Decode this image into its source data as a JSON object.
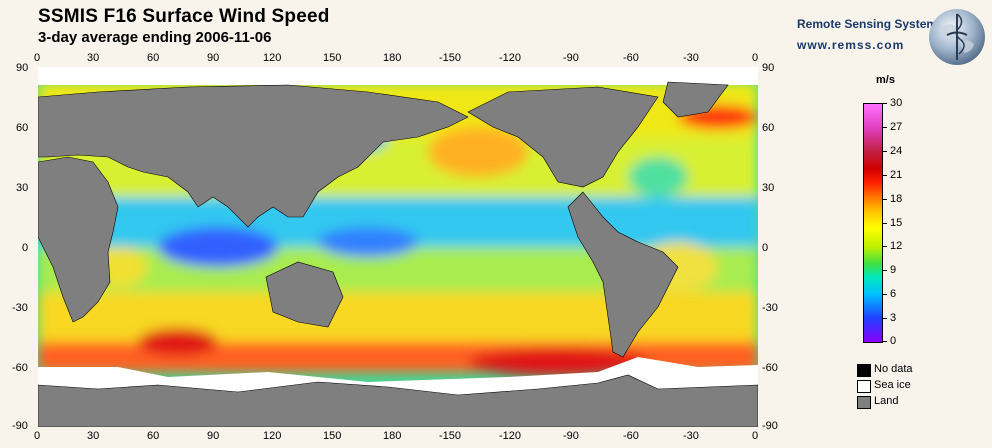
{
  "header": {
    "title": "SSMIS F16 Surface Wind Speed",
    "subtitle": "3-day average ending 2006-11-06"
  },
  "branding": {
    "name": "Remote Sensing Systems",
    "url": "www.remss.com",
    "logo_icon": "globe-logo-icon"
  },
  "map": {
    "lon_ticks": [
      "0",
      "30",
      "60",
      "90",
      "120",
      "150",
      "180",
      "-150",
      "-120",
      "-90",
      "-60",
      "-30",
      "0"
    ],
    "lat_ticks": [
      "90",
      "60",
      "30",
      "0",
      "-30",
      "-60",
      "-90"
    ]
  },
  "colorbar": {
    "unit": "m/s",
    "ticks": [
      "30",
      "27",
      "24",
      "21",
      "18",
      "15",
      "12",
      "9",
      "6",
      "3",
      "0"
    ],
    "min": 0,
    "max": 30
  },
  "legend": {
    "items": [
      {
        "label": "No data",
        "color": "#000000"
      },
      {
        "label": "Sea ice",
        "color": "#ffffff"
      },
      {
        "label": "Land",
        "color": "#7f7f7f"
      }
    ]
  },
  "colors": {
    "land": "#7f7f7f",
    "sea_ice": "#ffffff",
    "no_data": "#000000",
    "background": "#f8f4ec"
  }
}
